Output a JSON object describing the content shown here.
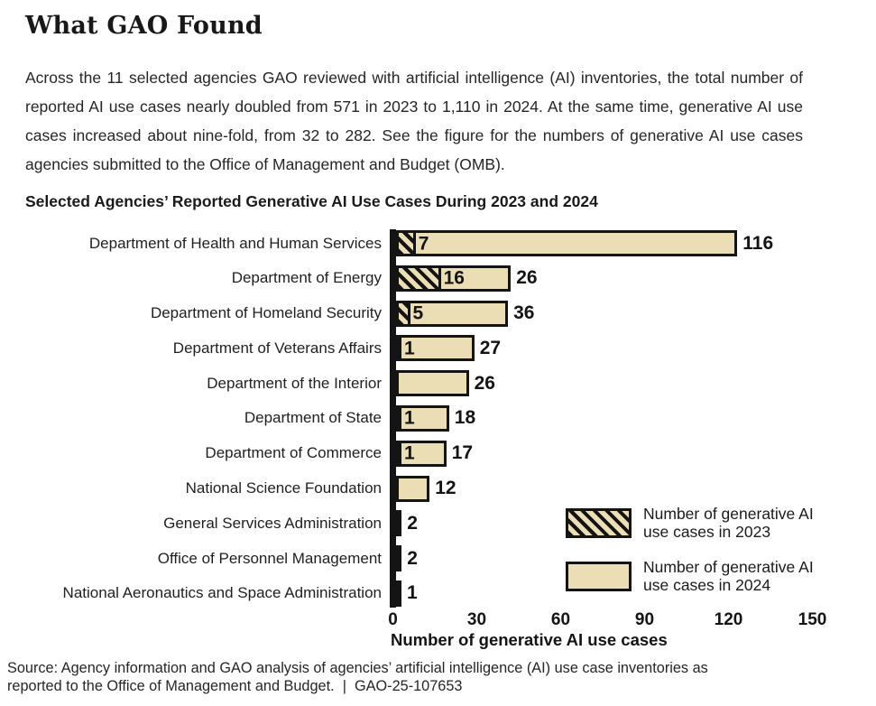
{
  "header": {
    "title": "What GAO Found"
  },
  "body": {
    "paragraph": "Across the 11 selected agencies GAO reviewed with artificial intelligence (AI) inventories, the total number of reported AI use cases nearly doubled from 571 in 2023 to 1,110 in 2024. At the same time, generative AI use cases increased about nine-fold, from 32 to 282. See the figure for the numbers of generative AI use cases agencies submitted to the Office of Management and Budget (OMB)."
  },
  "chart_data": {
    "type": "bar",
    "orientation": "horizontal",
    "stacked": true,
    "title": "Selected Agencies’ Reported Generative AI Use Cases During 2023 and 2024",
    "xlabel": "Number of generative AI use cases",
    "xlim": [
      0,
      150
    ],
    "xticks": [
      0,
      30,
      60,
      90,
      120,
      150
    ],
    "grid": false,
    "legend_position": "inside-lower-right",
    "categories": [
      "Department of Health and Human Services",
      "Department of Energy",
      "Department of Homeland Security",
      "Department of Veterans Affairs",
      "Department of the Interior",
      "Department of State",
      "Department of Commerce",
      "National Science Foundation",
      "General Services Administration",
      "Office of Personnel Management",
      "National Aeronautics and Space Administration"
    ],
    "series": [
      {
        "name": "Number of generative AI use cases in 2023",
        "style": "hatched",
        "values": [
          7,
          16,
          5,
          1,
          0,
          1,
          1,
          0,
          0,
          0,
          1
        ]
      },
      {
        "name": "Number of generative AI use cases in 2024",
        "style": "solid",
        "values": [
          116,
          26,
          36,
          27,
          26,
          18,
          17,
          12,
          2,
          2,
          0
        ]
      }
    ],
    "colors": {
      "bar_fill": "#EBDDB4",
      "hatch_stripes": "#141414",
      "bar_border": "#141414",
      "text": "#141414"
    }
  },
  "source": {
    "line1": "Source: Agency information and GAO analysis of agencies’ artificial intelligence (AI) use case inventories as",
    "line2": "reported to the Office of Management and Budget.  |  GAO-25-107653"
  }
}
